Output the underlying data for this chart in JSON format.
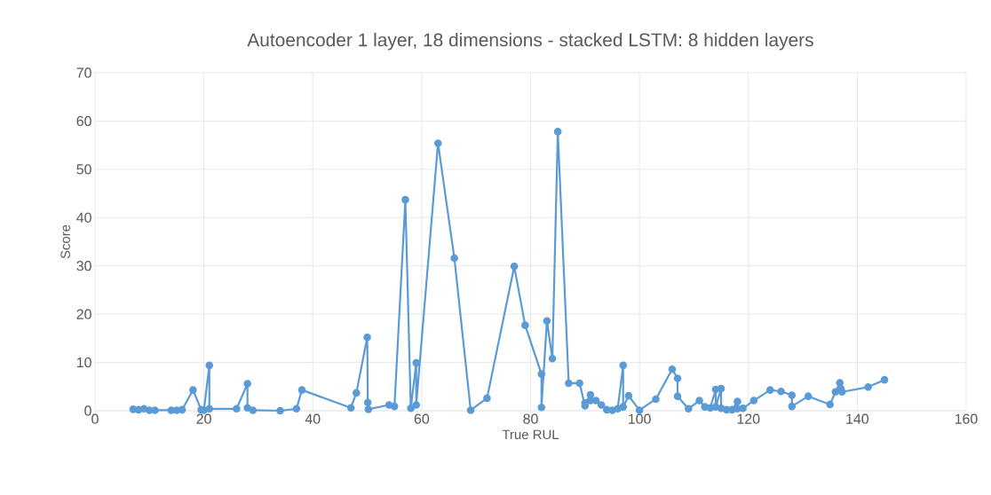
{
  "chart_data": {
    "type": "line",
    "title": "Autoencoder 1 layer, 18 dimensions - stacked LSTM: 8 hidden layers",
    "xlabel": "True RUL",
    "ylabel": "Score",
    "x": [
      7,
      8,
      9,
      10,
      11,
      14,
      15,
      16,
      18,
      19.5,
      20,
      21,
      21,
      26,
      28,
      28,
      29,
      34,
      37,
      38,
      47,
      48,
      50,
      50.1,
      50.2,
      54,
      55,
      57,
      58,
      59,
      59,
      63,
      66,
      69,
      72,
      77,
      79,
      82,
      82,
      83,
      84,
      85,
      87,
      89,
      90,
      90,
      91,
      91,
      92,
      93,
      94,
      95,
      96,
      97,
      97,
      98,
      100,
      103,
      106,
      107,
      107,
      109,
      111,
      112,
      113,
      114,
      114,
      115,
      115,
      116,
      117,
      118,
      118,
      119,
      121,
      124,
      126,
      128,
      128,
      131,
      135,
      136,
      136.8,
      137,
      137.2,
      142,
      145
    ],
    "series": [
      {
        "color": "#5b9bd5",
        "values": [
          0.3,
          0.2,
          0.4,
          0.1,
          0.1,
          0.1,
          0.1,
          0.2,
          4.3,
          0.2,
          0.1,
          9.4,
          0.4,
          0.4,
          5.6,
          0.6,
          0.1,
          0,
          0.4,
          4.3,
          0.6,
          3.7,
          15.2,
          1.7,
          0.3,
          1.2,
          0.9,
          43.7,
          0.5,
          9.9,
          1.2,
          55.4,
          31.6,
          0.1,
          2.6,
          29.9,
          17.7,
          7.6,
          0.7,
          18.6,
          10.8,
          57.8,
          5.7,
          5.7,
          1.0,
          1.6,
          3.3,
          2.1,
          2.1,
          1.2,
          0.2,
          0.1,
          0.4,
          9.4,
          0.8,
          3.1,
          0.1,
          2.4,
          8.6,
          6.7,
          3.0,
          0.4,
          2.1,
          0.8,
          0.6,
          4.4,
          0.8,
          4.6,
          0.5,
          0.2,
          0.2,
          1.9,
          0.4,
          0.5,
          2.1,
          4.3,
          4.0,
          3.2,
          0.9,
          3.0,
          1.3,
          3.9,
          5.8,
          4.6,
          3.9,
          4.9,
          6.4
        ]
      }
    ],
    "xlim": [
      0,
      160
    ],
    "ylim": [
      0,
      70
    ],
    "xticks": [
      0,
      20,
      40,
      60,
      80,
      100,
      120,
      140,
      160
    ],
    "yticks": [
      0,
      10,
      20,
      30,
      40,
      50,
      60,
      70
    ],
    "grid": true,
    "marker": "circle",
    "line_style": "solid"
  }
}
